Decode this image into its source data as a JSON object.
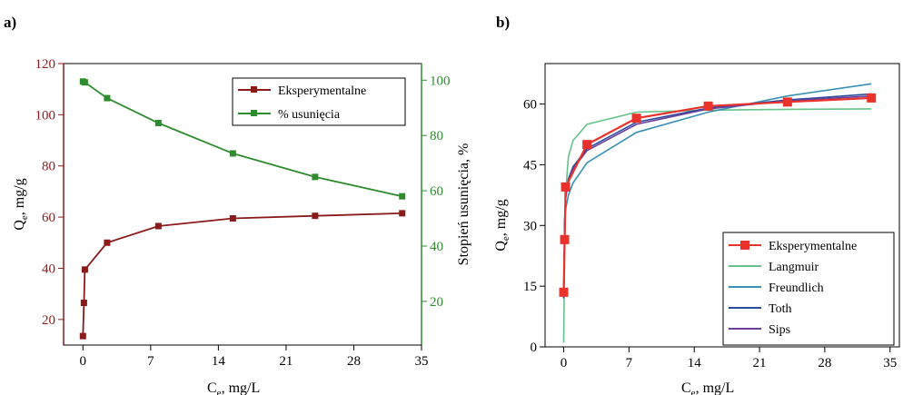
{
  "chart_data": [
    {
      "panel": "a)",
      "type": "line",
      "xlabel": "C_e, mg/L",
      "ylabel": "Q_e, mg/g",
      "y2label": "Stopień usunięcia, %",
      "xlim": [
        -2,
        35
      ],
      "ylim": [
        10,
        120
      ],
      "y2lim": [
        4.2,
        106
      ],
      "xticks": [
        0,
        7,
        14,
        21,
        28,
        35
      ],
      "yticks": [
        20,
        40,
        60,
        80,
        100,
        120
      ],
      "y2ticks": [
        20,
        40,
        60,
        80,
        100
      ],
      "grid": false,
      "legend_position": "top-right",
      "colors": {
        "left_axis": "#8b1a1a",
        "right_axis": "#2e8b2e"
      },
      "series": [
        {
          "name": "Eksperymentalne",
          "axis": "left",
          "color": "#8b1a1a",
          "marker": "square",
          "x": [
            0.0,
            0.1,
            0.2,
            2.5,
            7.8,
            15.5,
            24.0,
            33.0
          ],
          "y": [
            13.5,
            26.5,
            39.5,
            50.0,
            56.5,
            59.5,
            60.5,
            61.5
          ]
        },
        {
          "name": "% usunięcia",
          "axis": "right",
          "color": "#2e8b2e",
          "marker": "square",
          "x": [
            0.0,
            0.2,
            2.5,
            7.8,
            15.5,
            24.0,
            33.0
          ],
          "y": [
            99.5,
            99.2,
            93.5,
            84.5,
            73.5,
            65.0,
            58.0
          ]
        }
      ]
    },
    {
      "panel": "b)",
      "type": "line",
      "xlabel": "C_e, mg/L",
      "ylabel": "Q_e, mg/g",
      "xlim": [
        -2,
        36
      ],
      "ylim": [
        0,
        70
      ],
      "xticks": [
        0,
        7,
        14,
        21,
        28,
        35
      ],
      "yticks": [
        0,
        15,
        30,
        45,
        60
      ],
      "grid": false,
      "legend_position": "bottom-right",
      "series": [
        {
          "name": "Eksperymentalne",
          "color": "#e8322b",
          "marker": "square",
          "x": [
            0.0,
            0.1,
            0.2,
            2.5,
            7.8,
            15.5,
            24.0,
            33.0
          ],
          "y": [
            13.5,
            26.5,
            39.5,
            50.0,
            56.5,
            59.5,
            60.5,
            61.5
          ]
        },
        {
          "name": "Langmuir",
          "color": "#66c28a",
          "marker": "none",
          "x": [
            0.0,
            0.1,
            0.2,
            0.5,
            1.0,
            2.5,
            7.8,
            15.5,
            24.0,
            33.0
          ],
          "y": [
            1.0,
            25.0,
            38.0,
            47.0,
            51.0,
            55.0,
            58.0,
            58.5,
            58.7,
            58.8
          ]
        },
        {
          "name": "Freundlich",
          "color": "#3a8fb5",
          "marker": "none",
          "x": [
            0.0,
            0.1,
            0.2,
            0.5,
            1.0,
            2.5,
            7.8,
            15.5,
            24.0,
            33.0
          ],
          "y": [
            12.0,
            31.0,
            34.0,
            37.5,
            40.5,
            45.5,
            53.0,
            58.0,
            62.0,
            65.0
          ]
        },
        {
          "name": "Toth",
          "color": "#2a4a9a",
          "marker": "none",
          "x": [
            0.0,
            0.1,
            0.2,
            0.5,
            1.0,
            2.5,
            7.8,
            15.5,
            24.0,
            33.0
          ],
          "y": [
            12.0,
            31.5,
            37.0,
            41.5,
            44.5,
            49.0,
            55.5,
            59.0,
            61.0,
            62.5
          ]
        },
        {
          "name": "Sips",
          "color": "#6a3f9a",
          "marker": "none",
          "x": [
            0.0,
            0.1,
            0.2,
            0.5,
            1.0,
            2.5,
            7.8,
            15.5,
            24.0,
            33.0
          ],
          "y": [
            12.0,
            31.0,
            36.5,
            41.0,
            44.0,
            48.5,
            55.0,
            58.8,
            60.8,
            62.0
          ]
        }
      ]
    }
  ]
}
